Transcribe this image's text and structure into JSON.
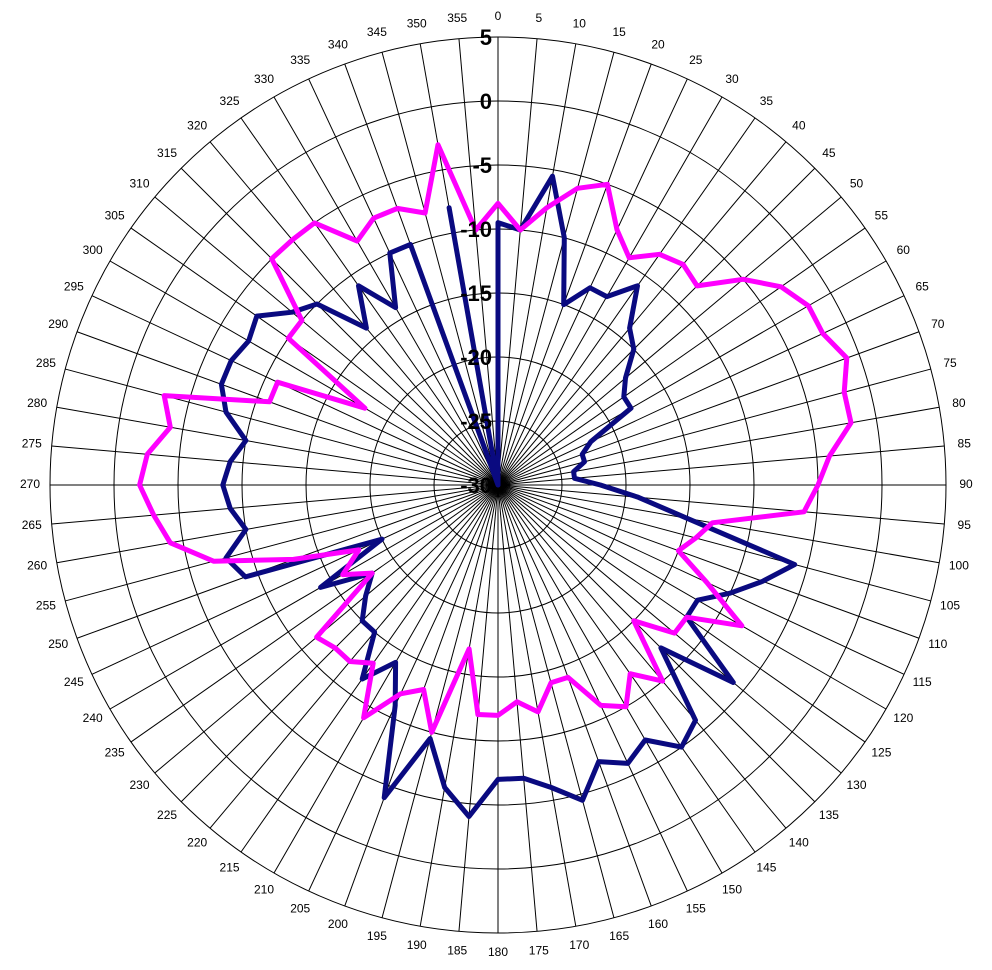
{
  "chart_data": {
    "type": "radar",
    "angle_unit": "degrees",
    "angle_step": 5,
    "angle_labels": [
      "0",
      "5",
      "10",
      "15",
      "20",
      "25",
      "30",
      "35",
      "40",
      "45",
      "50",
      "55",
      "60",
      "65",
      "70",
      "75",
      "80",
      "85",
      "90",
      "95",
      "100",
      "105",
      "110",
      "115",
      "120",
      "125",
      "130",
      "135",
      "140",
      "145",
      "150",
      "155",
      "160",
      "165",
      "170",
      "175",
      "180",
      "185",
      "190",
      "195",
      "200",
      "205",
      "210",
      "215",
      "220",
      "225",
      "230",
      "235",
      "240",
      "245",
      "250",
      "255",
      "260",
      "265",
      "270",
      "275",
      "280",
      "285",
      "290",
      "295",
      "300",
      "305",
      "310",
      "315",
      "320",
      "325",
      "330",
      "335",
      "340",
      "345",
      "350",
      "355"
    ],
    "radial_ticks": [
      "-30",
      "-25",
      "-20",
      "-15",
      "-10",
      "-5",
      "0",
      "5"
    ],
    "radial_range": [
      -30,
      5
    ],
    "grid": true,
    "legend": "none",
    "series": [
      {
        "color": "#0a0a80",
        "values": [
          -9.5,
          -10,
          -5.5,
          -10,
          -15,
          -13,
          -13,
          -11,
          -14,
          -15,
          -17,
          -18,
          -18,
          -22,
          -23,
          -23,
          -24,
          -24,
          -22,
          -19,
          -15,
          -6,
          -8,
          -10,
          -12,
          -12,
          -6,
          -12,
          -6,
          -5,
          -7,
          -6,
          -7,
          -4.5,
          -6,
          -7,
          -7,
          -4,
          -6,
          -9.5,
          -4,
          -11,
          -14,
          -11.5,
          -15,
          -15,
          -16.5,
          -18,
          -14,
          -20,
          -9,
          -8,
          -10,
          -9,
          -8.5,
          -9,
          -10,
          -8,
          -7,
          -7,
          -7.5,
          -7,
          -9,
          -10,
          -14,
          -11,
          -14,
          -10,
          -10,
          -30,
          -8,
          -30
        ]
      },
      {
        "color": "#ff00ff",
        "values": [
          -8,
          -10,
          -8,
          -6,
          -5,
          -8,
          -9.5,
          -8,
          -7.5,
          -8,
          -5,
          -3,
          -2,
          -2,
          -1,
          -2,
          -2,
          -4,
          -5,
          -6,
          -13,
          -14,
          -15,
          -12,
          -8,
          -12,
          -12,
          -15,
          -10,
          -12,
          -10,
          -11,
          -14,
          -14,
          -12,
          -13,
          -12,
          -12,
          -17,
          -10,
          -13,
          -12,
          -9,
          -13,
          -12,
          -12,
          -11.5,
          -18,
          -16,
          -18,
          -13,
          -7,
          -4,
          -3,
          -2,
          -2.5,
          -4,
          -3,
          -11,
          -11,
          -18,
          -10,
          -10,
          -5,
          -5,
          -5,
          -8,
          -7,
          -7,
          -8,
          -3,
          -10
        ]
      }
    ]
  }
}
